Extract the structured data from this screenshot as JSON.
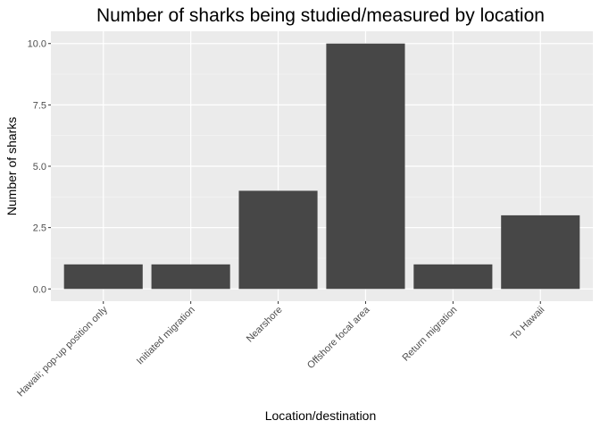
{
  "chart_data": {
    "type": "bar",
    "title": "Number of sharks being studied/measured by location",
    "xlabel": "Location/destination",
    "ylabel": "Number of sharks",
    "categories": [
      "Hawaii; pop-up position only",
      "Initiated migration",
      "Nearshore",
      "Offshore focal area",
      "Return migration",
      "To Hawaii"
    ],
    "values": [
      1,
      1,
      4,
      10,
      1,
      3
    ],
    "ylim": [
      -0.5,
      10.5
    ],
    "yticks": [
      0,
      2.5,
      5,
      7.5,
      10
    ],
    "ytick_labels": [
      "0.0",
      "2.5",
      "5.0",
      "7.5",
      "10.0"
    ],
    "grid": true,
    "legend": "none",
    "colors": {
      "bar": "#474747",
      "panel": "#ebebeb",
      "grid_major": "#ffffff",
      "grid_minor": "#f5f5f5",
      "tick": "#333333",
      "tick_text": "#4d4d4d"
    }
  }
}
